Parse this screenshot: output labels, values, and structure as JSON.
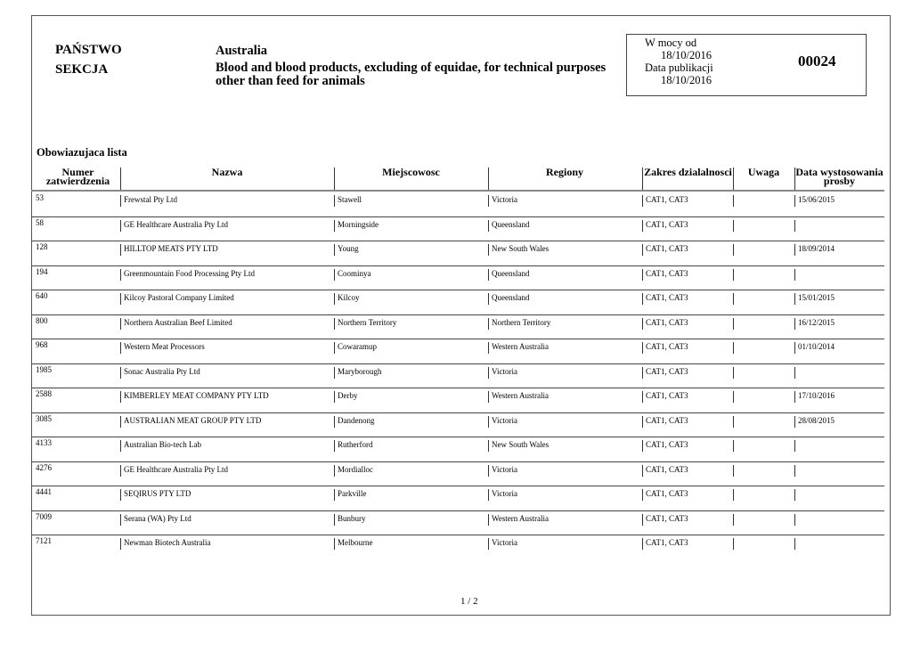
{
  "header": {
    "country_label": "PAŃSTWO",
    "section_label": "SEKCJA",
    "country": "Australia",
    "section_line1": "Blood and blood products, excluding of equidae, for technical purposes",
    "section_line2": "other than feed for animals"
  },
  "info": {
    "valid_from_label": "W mocy od",
    "valid_from": "18/10/2016",
    "published_label": "Data publikacji",
    "published": "18/10/2016",
    "number": "00024"
  },
  "list_title": "Obowiazujaca lista",
  "columns": [
    "Numer zatwierdzenia",
    "Nazwa",
    "Miejscowosc",
    "Regiony",
    "Zakres dzialalnosci",
    "Uwaga",
    "Data wystosowania prosby"
  ],
  "rows": [
    [
      "53",
      "Frewstal Pty Ltd",
      "Stawell",
      "Victoria",
      "CAT1, CAT3",
      "",
      "15/06/2015"
    ],
    [
      "58",
      "GE Healthcare Australia Pty Ltd",
      "Morningside",
      "Queensland",
      "CAT1, CAT3",
      "",
      ""
    ],
    [
      "128",
      "HILLTOP MEATS PTY LTD",
      "Young",
      "New South Wales",
      "CAT1, CAT3",
      "",
      "18/09/2014"
    ],
    [
      "194",
      "Greenmountain Food Processing Pty Ltd",
      "Coominya",
      "Queensland",
      "CAT1, CAT3",
      "",
      ""
    ],
    [
      "640",
      "Kilcoy Pastoral Company Limited",
      "Kilcoy",
      "Queensland",
      "CAT1, CAT3",
      "",
      "15/01/2015"
    ],
    [
      "800",
      "Northern Australian Beef Limited",
      "Northern Territory",
      "Northern Territory",
      "CAT1, CAT3",
      "",
      "16/12/2015"
    ],
    [
      "968",
      "Western Meat Processors",
      "Cowaramup",
      "Western Australia",
      "CAT1, CAT3",
      "",
      "01/10/2014"
    ],
    [
      "1985",
      "Sonac Australia Pty Ltd",
      "Maryborough",
      "Victoria",
      "CAT1, CAT3",
      "",
      ""
    ],
    [
      "2588",
      "KIMBERLEY MEAT COMPANY PTY LTD",
      "Derby",
      "Western Australia",
      "CAT1, CAT3",
      "",
      "17/10/2016"
    ],
    [
      "3085",
      "AUSTRALIAN MEAT GROUP PTY LTD",
      "Dandenong",
      "Victoria",
      "CAT1, CAT3",
      "",
      "28/08/2015"
    ],
    [
      "4133",
      "Australian Bio-tech Lab",
      "Rutherford",
      "New South Wales",
      "CAT1, CAT3",
      "",
      ""
    ],
    [
      "4276",
      "GE Healthcare Australia Pty Ltd",
      "Mordialloc",
      "Victoria",
      "CAT1, CAT3",
      "",
      ""
    ],
    [
      "4441",
      "SEQIRUS PTY LTD",
      "Parkville",
      "Victoria",
      "CAT1, CAT3",
      "",
      ""
    ],
    [
      "7009",
      "Serana (WA) Pty Ltd",
      "Bunbury",
      "Western Australia",
      "CAT1, CAT3",
      "",
      ""
    ],
    [
      "7121",
      "Newman Biotech Australia",
      "Melbourne",
      "Victoria",
      "CAT1, CAT3",
      "",
      ""
    ]
  ],
  "pager": {
    "current": "1",
    "separator": "/",
    "total": "2"
  }
}
